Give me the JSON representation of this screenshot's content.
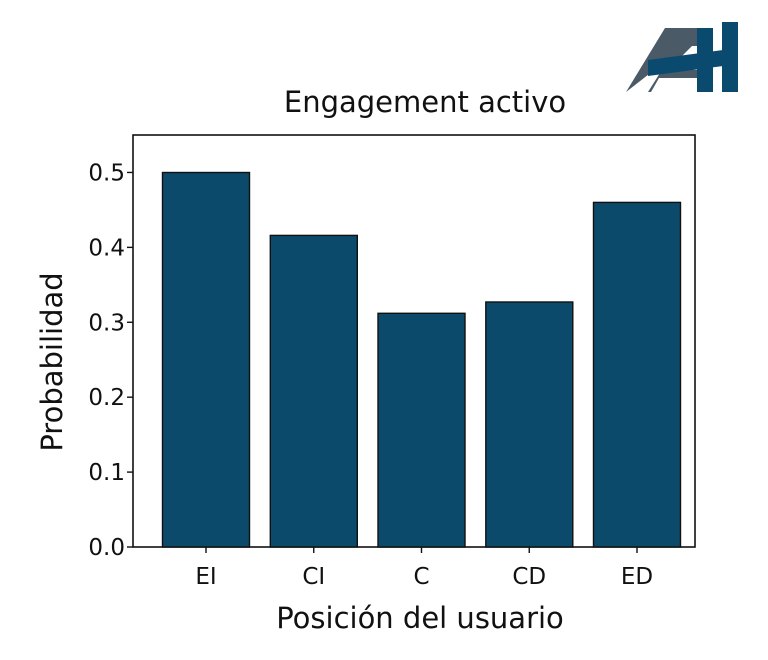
{
  "logo": {
    "text": "AH",
    "colors": {
      "a": "#4a5a66",
      "h": "#0a4a6e"
    }
  },
  "chart_data": {
    "type": "bar",
    "title": "Engagement activo",
    "xlabel": "Posición del usuario",
    "ylabel": "Probabilidad",
    "categories": [
      "EI",
      "CI",
      "C",
      "CD",
      "ED"
    ],
    "values": [
      0.5,
      0.416,
      0.312,
      0.327,
      0.46
    ],
    "ylim": [
      0,
      0.55
    ],
    "yticks": [
      "0.0",
      "0.1",
      "0.2",
      "0.3",
      "0.4",
      "0.5"
    ],
    "grid": false,
    "bar_color": "#0b4a6b",
    "bar_edge_color": "#111111"
  }
}
